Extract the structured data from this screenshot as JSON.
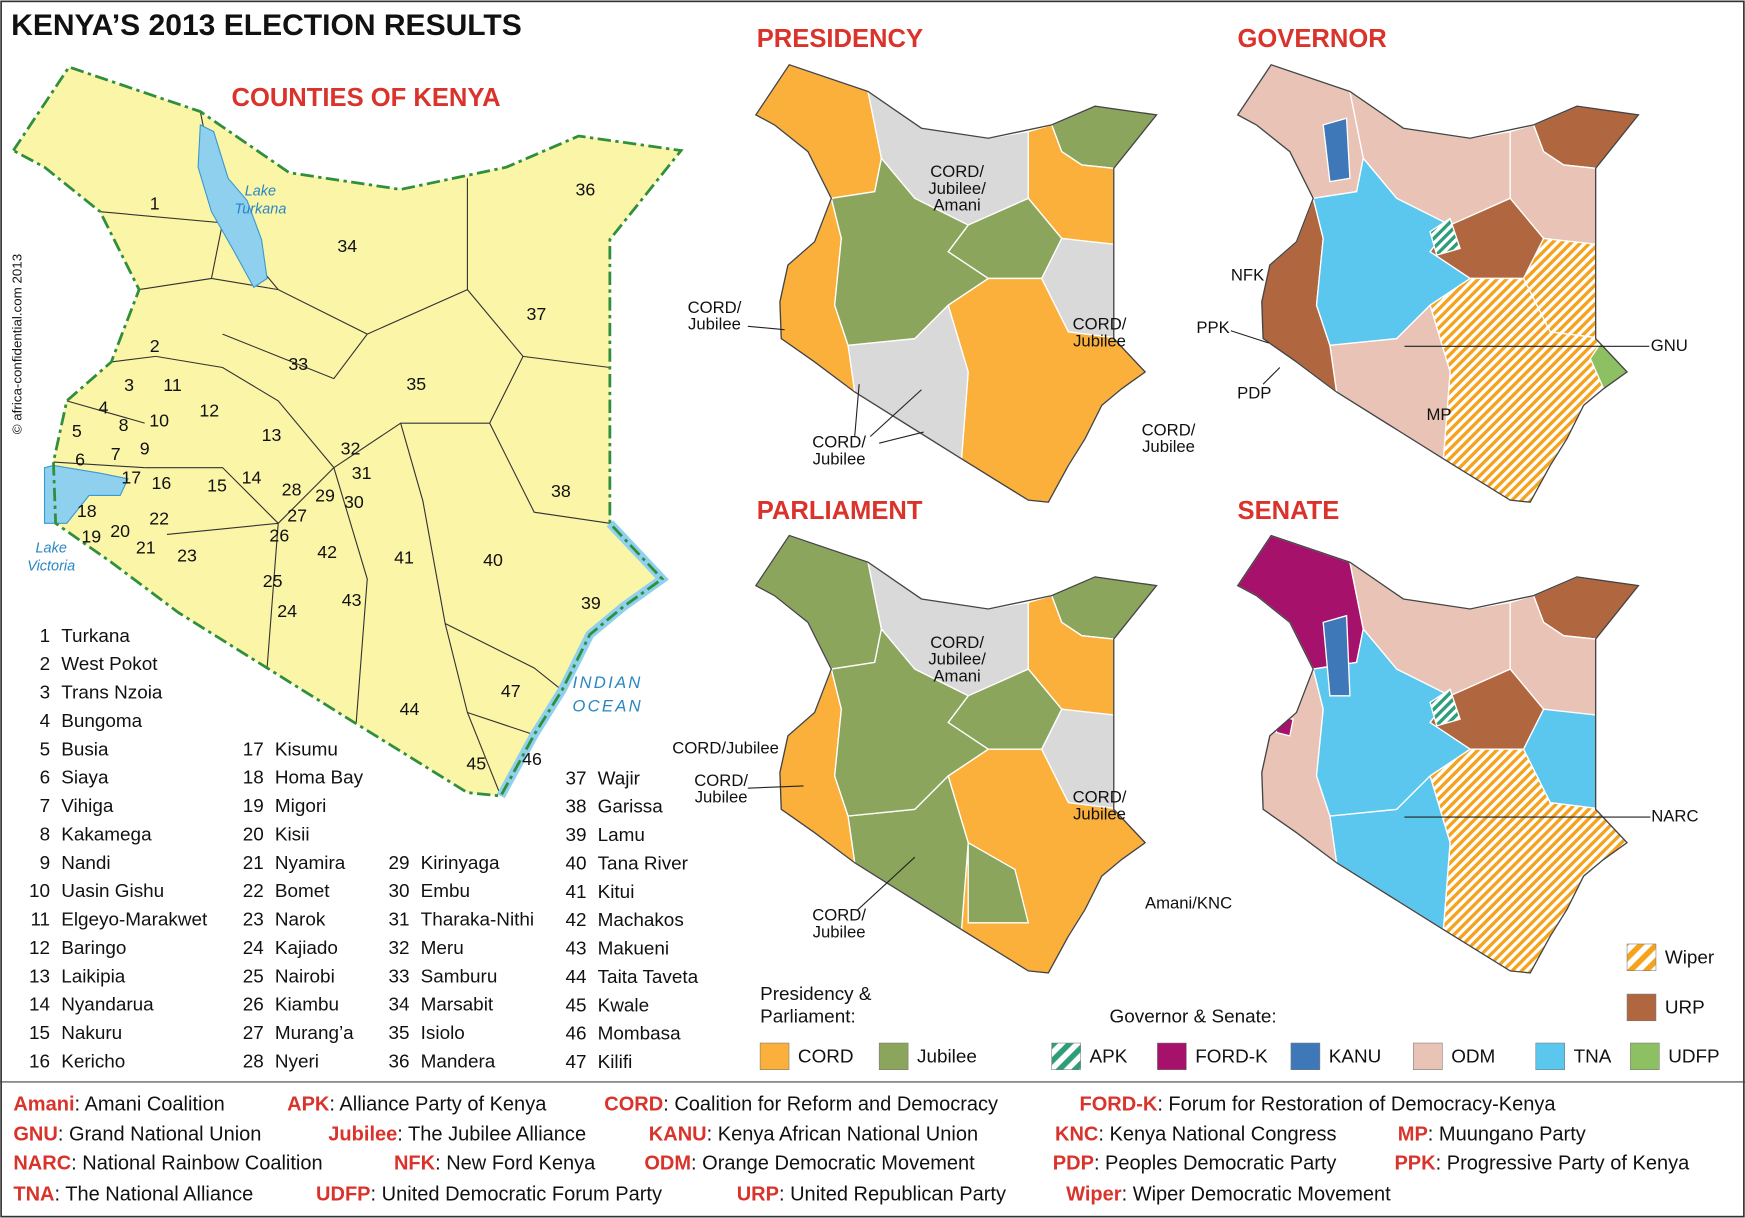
{
  "title": "KENYA’S 2013 ELECTION RESULTS",
  "credit": "© africa-confidential.com 2013",
  "counties_map": {
    "title": "COUNTIES OF KENYA",
    "water_labels": [
      {
        "lines": [
          "Lake",
          "Turkana"
        ]
      },
      {
        "lines": [
          "Lake",
          "Victoria"
        ]
      },
      {
        "lines": [
          "INDIAN",
          "OCEAN"
        ]
      }
    ],
    "counties": [
      {
        "number": 1,
        "name": "Turkana"
      },
      {
        "number": 2,
        "name": "West Pokot"
      },
      {
        "number": 3,
        "name": "Trans Nzoia"
      },
      {
        "number": 4,
        "name": "Bungoma"
      },
      {
        "number": 5,
        "name": "Busia"
      },
      {
        "number": 6,
        "name": "Siaya"
      },
      {
        "number": 7,
        "name": "Vihiga"
      },
      {
        "number": 8,
        "name": "Kakamega"
      },
      {
        "number": 9,
        "name": "Nandi"
      },
      {
        "number": 10,
        "name": "Uasin Gishu"
      },
      {
        "number": 11,
        "name": "Elgeyo-Marakwet"
      },
      {
        "number": 12,
        "name": "Baringo"
      },
      {
        "number": 13,
        "name": "Laikipia"
      },
      {
        "number": 14,
        "name": "Nyandarua"
      },
      {
        "number": 15,
        "name": "Nakuru"
      },
      {
        "number": 16,
        "name": "Kericho"
      },
      {
        "number": 17,
        "name": "Kisumu"
      },
      {
        "number": 18,
        "name": "Homa Bay"
      },
      {
        "number": 19,
        "name": "Migori"
      },
      {
        "number": 20,
        "name": "Kisii"
      },
      {
        "number": 21,
        "name": "Nyamira"
      },
      {
        "number": 22,
        "name": "Bomet"
      },
      {
        "number": 23,
        "name": "Narok"
      },
      {
        "number": 24,
        "name": "Kajiado"
      },
      {
        "number": 25,
        "name": "Nairobi"
      },
      {
        "number": 26,
        "name": "Kiambu"
      },
      {
        "number": 27,
        "name": "Murang’a"
      },
      {
        "number": 28,
        "name": "Nyeri"
      },
      {
        "number": 29,
        "name": "Kirinyaga"
      },
      {
        "number": 30,
        "name": "Embu"
      },
      {
        "number": 31,
        "name": "Tharaka-Nithi"
      },
      {
        "number": 32,
        "name": "Meru"
      },
      {
        "number": 33,
        "name": "Samburu"
      },
      {
        "number": 34,
        "name": "Marsabit"
      },
      {
        "number": 35,
        "name": "Isiolo"
      },
      {
        "number": 36,
        "name": "Mandera"
      },
      {
        "number": 37,
        "name": "Wajir"
      },
      {
        "number": 38,
        "name": "Garissa"
      },
      {
        "number": 39,
        "name": "Lamu"
      },
      {
        "number": 40,
        "name": "Tana River"
      },
      {
        "number": 41,
        "name": "Kitui"
      },
      {
        "number": 42,
        "name": "Machakos"
      },
      {
        "number": 43,
        "name": "Makueni"
      },
      {
        "number": 44,
        "name": "Taita Taveta"
      },
      {
        "number": 45,
        "name": "Kwale"
      },
      {
        "number": 46,
        "name": "Mombasa"
      },
      {
        "number": 47,
        "name": "Kilifi"
      }
    ]
  },
  "maps": [
    {
      "title": "PRESIDENCY",
      "labels": [
        {
          "lines": [
            "CORD/",
            "Jubilee/",
            "Amani"
          ]
        },
        {
          "lines": [
            "CORD/",
            "Jubilee"
          ]
        },
        {
          "lines": [
            "CORD/",
            "Jubilee"
          ]
        },
        {
          "lines": [
            "CORD/",
            "Jubilee"
          ]
        },
        {
          "lines": [
            "CORD/",
            "Jubilee"
          ]
        }
      ]
    },
    {
      "title": "GOVERNOR",
      "labels": [
        {
          "lines": [
            "NFK"
          ]
        },
        {
          "lines": [
            "PPK"
          ]
        },
        {
          "lines": [
            "PDP"
          ]
        },
        {
          "lines": [
            "MP"
          ]
        },
        {
          "lines": [
            "GNU"
          ]
        }
      ]
    },
    {
      "title": "PARLIAMENT",
      "labels": [
        {
          "lines": [
            "CORD/",
            "Jubilee/",
            "Amani"
          ]
        },
        {
          "lines": [
            "CORD/Jubilee"
          ]
        },
        {
          "lines": [
            "CORD/",
            "Jubilee"
          ]
        },
        {
          "lines": [
            "CORD/",
            "Jubilee"
          ]
        },
        {
          "lines": [
            "Amani/KNC"
          ]
        },
        {
          "lines": [
            "CORD/",
            "Jubilee"
          ]
        }
      ]
    },
    {
      "title": "SENATE",
      "labels": [
        {
          "lines": [
            "NARC"
          ]
        }
      ]
    }
  ],
  "legends": [
    {
      "title_lines": [
        "Presidency &",
        "Parliament:"
      ],
      "items": [
        {
          "name": "CORD",
          "color": "#fbb03b"
        },
        {
          "name": "Jubilee",
          "color": "#8ba65c"
        }
      ]
    },
    {
      "title_lines": [
        "Governor & Senate:"
      ],
      "items": [
        {
          "name": "APK",
          "color": "#2e9e7a",
          "hatch": true
        },
        {
          "name": "FORD-K",
          "color": "#a6126b"
        },
        {
          "name": "KANU",
          "color": "#3f78b8"
        },
        {
          "name": "ODM",
          "color": "#e9c3b6"
        },
        {
          "name": "TNA",
          "color": "#5bc7ef"
        },
        {
          "name": "UDFP",
          "color": "#8cc063"
        },
        {
          "name": "Wiper",
          "color": "#f5a21e",
          "hatch": true
        },
        {
          "name": "URP",
          "color": "#b0663f"
        }
      ]
    }
  ],
  "abbreviations": [
    [
      {
        "abbr": "Amani",
        "text": ": Amani Coalition"
      },
      {
        "abbr": "APK",
        "text": ": Alliance Party of Kenya"
      },
      {
        "abbr": "CORD",
        "text": ": Coalition for Reform and Democracy"
      },
      {
        "abbr": "FORD-K",
        "text": ": Forum for Restoration of Democracy-Kenya"
      }
    ],
    [
      {
        "abbr": "GNU",
        "text": ": Grand National Union"
      },
      {
        "abbr": "Jubilee",
        "text": ": The Jubilee Alliance"
      },
      {
        "abbr": "KANU",
        "text": ": Kenya African National Union"
      },
      {
        "abbr": "KNC",
        "text": ": Kenya National Congress"
      },
      {
        "abbr": "MP",
        "text": ": Muungano Party"
      }
    ],
    [
      {
        "abbr": "NARC",
        "text": ": National Rainbow Coalition"
      },
      {
        "abbr": "NFK",
        "text": ": New Ford Kenya"
      },
      {
        "abbr": "ODM",
        "text": ": Orange Democratic Movement"
      },
      {
        "abbr": "PDP",
        "text": ": Peoples Democratic Party"
      },
      {
        "abbr": "PPK",
        "text": ": Progressive Party of Kenya"
      }
    ],
    [
      {
        "abbr": "TNA",
        "text": ": The National Alliance"
      },
      {
        "abbr": "UDFP",
        "text": ": United Democratic Forum Party"
      },
      {
        "abbr": "URP",
        "text": ": United Republican Party"
      },
      {
        "abbr": "Wiper",
        "text": ": Wiper Democratic Movement"
      }
    ]
  ]
}
